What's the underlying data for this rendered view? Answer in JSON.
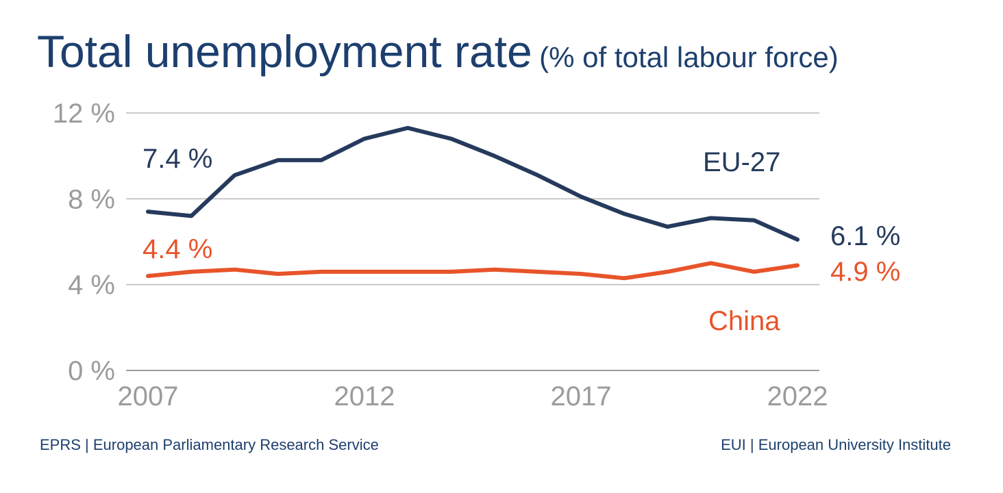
{
  "title": {
    "main": "Total unemployment rate",
    "sub": "(% of total labour force)"
  },
  "footer": {
    "left": "EPRS | European Parliamentary Research Service",
    "right": "EUI | European University Institute"
  },
  "colors": {
    "eu": "#253a5c",
    "china": "#e8542a",
    "grid": "#b9b9b9",
    "axis": "#9b9b9b",
    "title": "#1d3f6e"
  },
  "chart_data": {
    "type": "line",
    "title": "Total unemployment rate (% of total labour force)",
    "xlabel": "",
    "ylabel": "",
    "x": [
      2007,
      2008,
      2009,
      2010,
      2011,
      2012,
      2013,
      2014,
      2015,
      2016,
      2017,
      2018,
      2019,
      2020,
      2021,
      2022
    ],
    "xlim": [
      2007,
      2022
    ],
    "ylim": [
      0,
      12
    ],
    "xticks": [
      2007,
      2012,
      2017,
      2022
    ],
    "xtick_labels": [
      "2007",
      "2012",
      "2017",
      "2022"
    ],
    "yticks": [
      0,
      4,
      8,
      12
    ],
    "ytick_labels": [
      "0 %",
      "4 %",
      "8 %",
      "12 %"
    ],
    "grid": true,
    "series": [
      {
        "name": "EU-27",
        "values": [
          7.4,
          7.2,
          9.1,
          9.8,
          9.8,
          10.8,
          11.3,
          10.8,
          10.0,
          9.1,
          8.1,
          7.3,
          6.7,
          7.1,
          7.0,
          6.1
        ]
      },
      {
        "name": "China",
        "values": [
          4.4,
          4.6,
          4.7,
          4.5,
          4.6,
          4.6,
          4.6,
          4.6,
          4.7,
          4.6,
          4.5,
          4.3,
          4.6,
          5.0,
          4.6,
          4.9
        ]
      }
    ],
    "annotations": {
      "eu_start": "7.4 %",
      "eu_end": "6.1 %",
      "china_start": "4.4 %",
      "china_end": "4.9 %",
      "eu_label": "EU-27",
      "china_label": "China"
    }
  }
}
